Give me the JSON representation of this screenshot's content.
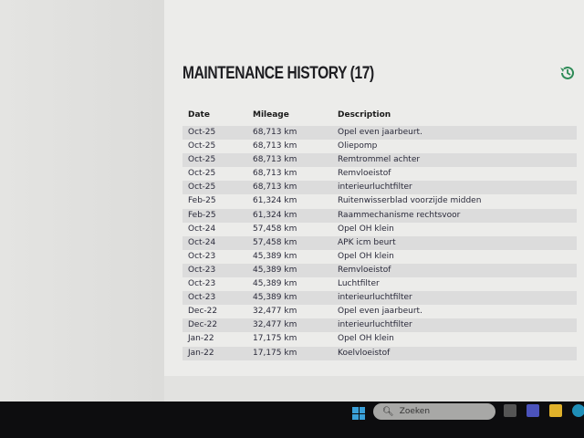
{
  "title": "MAINTENANCE HISTORY (17)",
  "icons": {
    "history": "history-icon"
  },
  "table": {
    "headers": [
      "Date",
      "Mileage",
      "Description"
    ],
    "rows": [
      [
        "Oct-25",
        "68,713 km",
        "Opel even jaarbeurt."
      ],
      [
        "Oct-25",
        "68,713 km",
        "Oliepomp"
      ],
      [
        "Oct-25",
        "68,713 km",
        "Remtrommel achter"
      ],
      [
        "Oct-25",
        "68,713 km",
        "Remvloeistof"
      ],
      [
        "Oct-25",
        "68,713 km",
        "interieurluchtfilter"
      ],
      [
        "Feb-25",
        "61,324 km",
        "Ruitenwisserblad voorzijde midden"
      ],
      [
        "Feb-25",
        "61,324 km",
        "Raammechanisme rechtsvoor"
      ],
      [
        "Oct-24",
        "57,458 km",
        "Opel OH klein"
      ],
      [
        "Oct-24",
        "57,458 km",
        "APK icm beurt"
      ],
      [
        "Oct-23",
        "45,389 km",
        "Opel OH klein"
      ],
      [
        "Oct-23",
        "45,389 km",
        "Remvloeistof"
      ],
      [
        "Oct-23",
        "45,389 km",
        "Luchtfilter"
      ],
      [
        "Oct-23",
        "45,389 km",
        "interieurluchtfilter"
      ],
      [
        "Dec-22",
        "32,477 km",
        "Opel even jaarbeurt."
      ],
      [
        "Dec-22",
        "32,477 km",
        "interieurluchtfilter"
      ],
      [
        "Jan-22",
        "17,175 km",
        "Opel OH klein"
      ],
      [
        "Jan-22",
        "17,175 km",
        "Koelvloeistof"
      ]
    ]
  },
  "taskbar": {
    "search_placeholder": "Zoeken"
  },
  "colors": {
    "accent": "#2e8b57",
    "taskbar": "#0d0d0f"
  }
}
